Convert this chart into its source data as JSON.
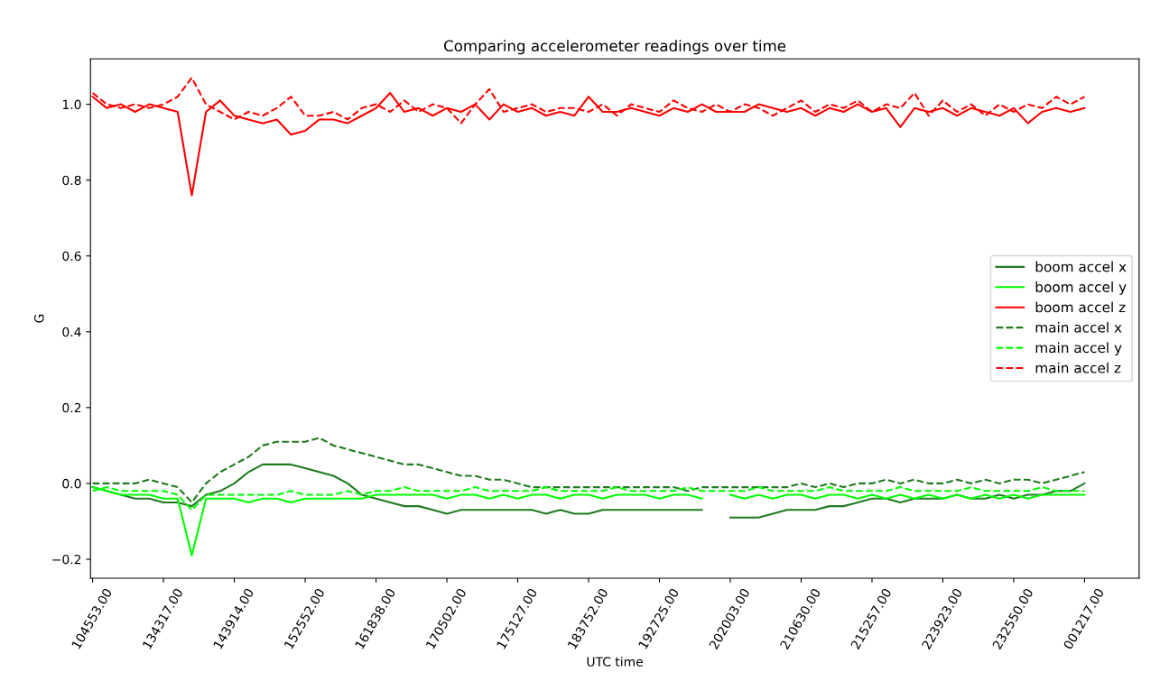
{
  "chart_data": {
    "type": "line",
    "title": "Comparing accelerometer readings over time",
    "xlabel": "UTC time",
    "ylabel": "G",
    "categories": [
      "104553.00",
      null,
      null,
      null,
      null,
      "134317.00",
      null,
      null,
      null,
      null,
      "143914.00",
      null,
      null,
      null,
      null,
      "152552.00",
      null,
      null,
      null,
      null,
      "161838.00",
      null,
      null,
      null,
      null,
      "170502.00",
      null,
      null,
      null,
      null,
      "175127.00",
      null,
      null,
      null,
      null,
      "183752.00",
      null,
      null,
      null,
      null,
      "192725.00",
      null,
      null,
      null,
      null,
      "202003.00",
      null,
      null,
      null,
      null,
      "210630.00",
      null,
      null,
      null,
      null,
      "215257.00",
      null,
      null,
      null,
      null,
      "223923.00",
      null,
      null,
      null,
      null,
      "232550.00",
      null,
      null,
      null,
      null,
      "001217.00"
    ],
    "ylim": [
      -0.25,
      1.12
    ],
    "yticks": [
      {
        "value": -0.2,
        "label": "−0.2"
      },
      {
        "value": 0,
        "label": "0.0"
      },
      {
        "value": 0.2,
        "label": "0.2"
      },
      {
        "value": 0.4,
        "label": "0.4"
      },
      {
        "value": 0.6,
        "label": "0.6"
      },
      {
        "value": 0.8,
        "label": "0.8"
      },
      {
        "value": 1.0,
        "label": "1.0"
      }
    ],
    "legend": "center right",
    "series": [
      {
        "name": "boom accel x",
        "color": "#1e7b1e",
        "line_style": "solid",
        "values": [
          -0.01,
          -0.02,
          -0.03,
          -0.04,
          -0.04,
          -0.05,
          -0.05,
          -0.06,
          -0.03,
          -0.02,
          0.0,
          0.03,
          0.05,
          0.05,
          0.05,
          0.04,
          0.03,
          0.02,
          0.0,
          -0.03,
          -0.04,
          -0.05,
          -0.06,
          -0.06,
          -0.07,
          -0.08,
          -0.07,
          -0.07,
          -0.07,
          -0.07,
          -0.07,
          -0.07,
          -0.08,
          -0.07,
          -0.08,
          -0.08,
          -0.07,
          -0.07,
          -0.07,
          -0.07,
          -0.07,
          -0.07,
          -0.07,
          -0.07,
          null,
          -0.09,
          -0.09,
          -0.09,
          -0.08,
          -0.07,
          -0.07,
          -0.07,
          -0.06,
          -0.06,
          -0.05,
          -0.04,
          -0.04,
          -0.05,
          -0.04,
          -0.04,
          -0.04,
          -0.03,
          -0.04,
          -0.04,
          -0.03,
          -0.04,
          -0.03,
          -0.03,
          -0.02,
          -0.02,
          0.0
        ]
      },
      {
        "name": "boom accel y",
        "color": "#00ff00",
        "line_style": "solid",
        "values": [
          -0.01,
          -0.02,
          -0.03,
          -0.03,
          -0.03,
          -0.04,
          -0.04,
          -0.19,
          -0.04,
          -0.04,
          -0.04,
          -0.05,
          -0.04,
          -0.04,
          -0.05,
          -0.04,
          -0.04,
          -0.04,
          -0.04,
          -0.04,
          -0.03,
          -0.03,
          -0.03,
          -0.03,
          -0.03,
          -0.04,
          -0.03,
          -0.03,
          -0.04,
          -0.03,
          -0.04,
          -0.03,
          -0.03,
          -0.04,
          -0.03,
          -0.03,
          -0.04,
          -0.03,
          -0.03,
          -0.03,
          -0.04,
          -0.03,
          -0.03,
          -0.04,
          null,
          -0.03,
          -0.04,
          -0.03,
          -0.04,
          -0.03,
          -0.03,
          -0.04,
          -0.03,
          -0.03,
          -0.04,
          -0.03,
          -0.04,
          -0.03,
          -0.04,
          -0.03,
          -0.04,
          -0.03,
          -0.04,
          -0.03,
          -0.04,
          -0.03,
          -0.04,
          -0.03,
          -0.03,
          -0.03,
          -0.03
        ]
      },
      {
        "name": "boom accel z",
        "color": "#ff0000",
        "line_style": "solid",
        "values": [
          1.02,
          0.99,
          1.0,
          0.98,
          1.0,
          0.99,
          0.98,
          0.76,
          0.98,
          1.01,
          0.97,
          0.96,
          0.95,
          0.96,
          0.92,
          0.93,
          0.96,
          0.96,
          0.95,
          0.97,
          0.99,
          1.03,
          0.98,
          0.99,
          0.97,
          0.99,
          0.98,
          1.0,
          0.96,
          1.0,
          0.98,
          0.99,
          0.97,
          0.98,
          0.97,
          1.02,
          0.98,
          0.98,
          0.99,
          0.98,
          0.97,
          0.99,
          0.98,
          1.0,
          0.98,
          0.98,
          0.98,
          1.0,
          0.99,
          0.98,
          0.99,
          0.97,
          0.99,
          0.98,
          1.0,
          0.98,
          0.99,
          0.94,
          0.99,
          0.98,
          0.99,
          0.97,
          0.99,
          0.98,
          0.97,
          0.99,
          0.95,
          0.98,
          0.99,
          0.98,
          0.99
        ]
      },
      {
        "name": "main accel x",
        "color": "#1e7b1e",
        "line_style": "dashed",
        "values": [
          0.0,
          0.0,
          0.0,
          0.0,
          0.01,
          0.0,
          -0.01,
          -0.05,
          0.0,
          0.03,
          0.05,
          0.07,
          0.1,
          0.11,
          0.11,
          0.11,
          0.12,
          0.1,
          0.09,
          0.08,
          0.07,
          0.06,
          0.05,
          0.05,
          0.04,
          0.03,
          0.02,
          0.02,
          0.01,
          0.01,
          0.0,
          -0.01,
          -0.01,
          -0.01,
          -0.01,
          -0.01,
          -0.01,
          -0.01,
          -0.01,
          -0.01,
          -0.01,
          -0.01,
          -0.02,
          -0.01,
          -0.01,
          -0.01,
          -0.01,
          -0.01,
          -0.01,
          -0.01,
          0.0,
          -0.01,
          0.0,
          -0.01,
          0.0,
          0.0,
          0.01,
          0.0,
          0.01,
          0.0,
          0.0,
          0.01,
          0.0,
          0.01,
          0.0,
          0.01,
          0.01,
          0.0,
          0.01,
          0.02,
          0.03
        ]
      },
      {
        "name": "main accel y",
        "color": "#00ff00",
        "line_style": "dashed",
        "values": [
          -0.02,
          -0.01,
          -0.02,
          -0.02,
          -0.02,
          -0.02,
          -0.03,
          -0.07,
          -0.03,
          -0.03,
          -0.03,
          -0.03,
          -0.03,
          -0.03,
          -0.02,
          -0.03,
          -0.03,
          -0.03,
          -0.02,
          -0.03,
          -0.02,
          -0.02,
          -0.01,
          -0.02,
          -0.02,
          -0.02,
          -0.02,
          -0.01,
          -0.02,
          -0.02,
          -0.02,
          -0.02,
          -0.01,
          -0.02,
          -0.02,
          -0.02,
          -0.02,
          -0.01,
          -0.02,
          -0.02,
          -0.02,
          -0.02,
          -0.01,
          -0.02,
          -0.02,
          -0.02,
          -0.02,
          -0.01,
          -0.02,
          -0.02,
          -0.02,
          -0.02,
          -0.01,
          -0.02,
          -0.02,
          -0.02,
          -0.02,
          -0.01,
          -0.02,
          -0.02,
          -0.02,
          -0.02,
          -0.01,
          -0.02,
          -0.02,
          -0.02,
          -0.02,
          -0.01,
          -0.02,
          -0.02,
          -0.02
        ]
      },
      {
        "name": "main accel z",
        "color": "#ff0000",
        "line_style": "dashed",
        "values": [
          1.03,
          1.0,
          0.99,
          1.0,
          0.99,
          1.0,
          1.02,
          1.07,
          1.0,
          0.98,
          0.96,
          0.98,
          0.97,
          0.99,
          1.02,
          0.97,
          0.97,
          0.98,
          0.96,
          0.99,
          1.0,
          0.98,
          1.01,
          0.98,
          1.0,
          0.99,
          0.95,
          1.0,
          1.04,
          0.98,
          0.99,
          1.0,
          0.98,
          0.99,
          0.99,
          0.98,
          1.0,
          0.97,
          1.0,
          0.99,
          0.98,
          1.01,
          0.99,
          0.98,
          1.0,
          0.98,
          1.0,
          0.99,
          0.97,
          0.99,
          1.01,
          0.98,
          1.0,
          0.99,
          1.01,
          0.98,
          1.0,
          0.99,
          1.03,
          0.97,
          1.01,
          0.98,
          1.0,
          0.97,
          1.0,
          0.98,
          1.0,
          0.99,
          1.02,
          1.0,
          1.02
        ]
      }
    ]
  }
}
